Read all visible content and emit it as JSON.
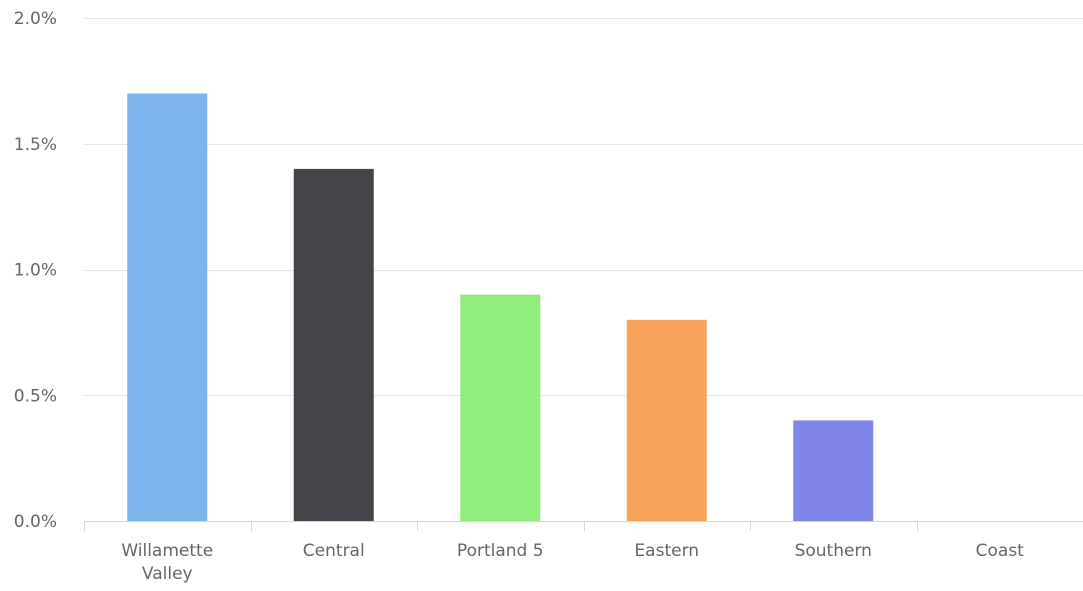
{
  "chart_data": {
    "type": "bar",
    "title": "",
    "xlabel": "",
    "ylabel": "",
    "categories": [
      "Willamette Valley",
      "Central",
      "Portland 5",
      "Eastern",
      "Southern",
      "Coast"
    ],
    "category_lines": [
      [
        "Willamette",
        "Valley"
      ],
      [
        "Central"
      ],
      [
        "Portland 5"
      ],
      [
        "Eastern"
      ],
      [
        "Southern"
      ],
      [
        "Coast"
      ]
    ],
    "values": [
      1.7,
      1.4,
      0.9,
      0.8,
      0.4,
      0
    ],
    "value_unit": "%",
    "colors": [
      "#7cb5ec",
      "#434348",
      "#90ed7d",
      "#f7a35c",
      "#8085e9",
      "#f15c80"
    ],
    "ylim": [
      0,
      2
    ],
    "yticks": [
      0,
      0.5,
      1,
      1.5,
      2
    ],
    "ytick_labels": [
      "0.0%",
      "0.5%",
      "1.0%",
      "1.5%",
      "2.0%"
    ],
    "grid": true,
    "legend": "none"
  }
}
